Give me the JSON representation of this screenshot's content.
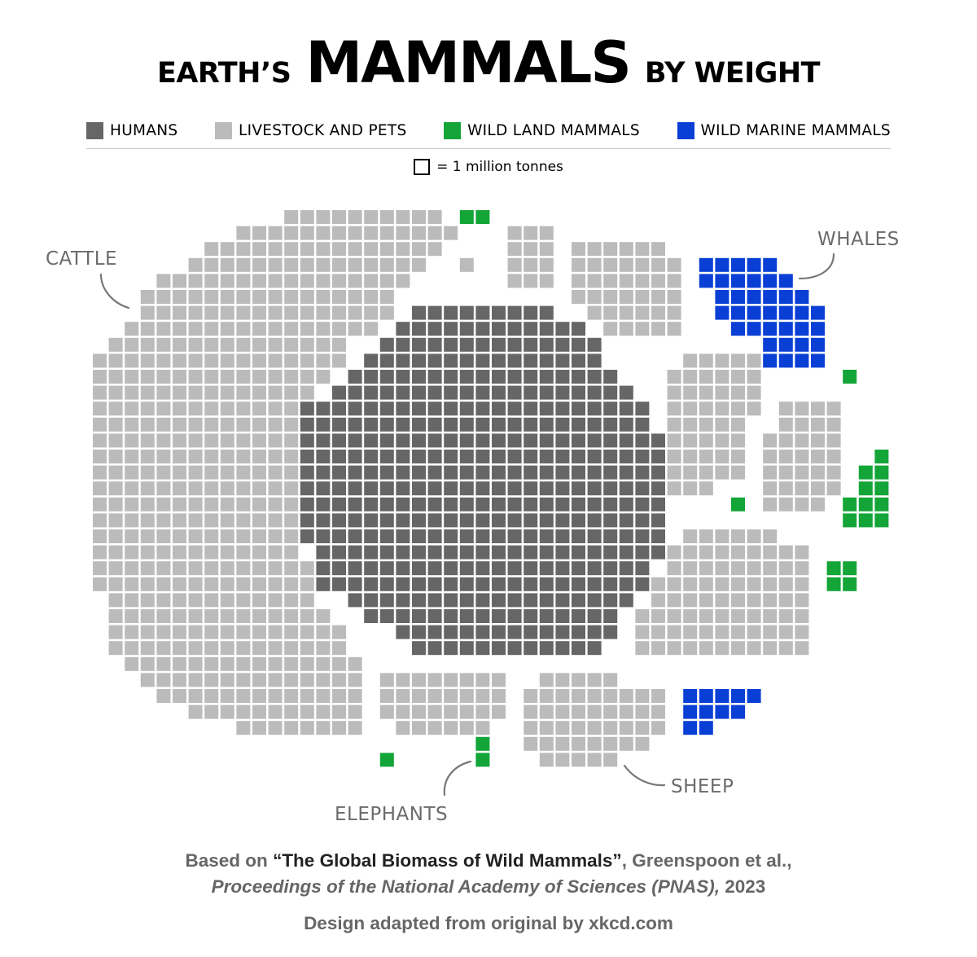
{
  "title": {
    "prefix": "EARTH’S",
    "main": "MAMMALS",
    "suffix": "BY WEIGHT"
  },
  "colors": {
    "humans": "#666666",
    "livestock": "#bbbbbb",
    "wild_land": "#13a538",
    "wild_marine": "#0a3fd6"
  },
  "legend": [
    {
      "key": "humans",
      "label": "HUMANS"
    },
    {
      "key": "livestock",
      "label": "LIVESTOCK AND PETS"
    },
    {
      "key": "wild_land",
      "label": "WILD LAND MAMMALS"
    },
    {
      "key": "wild_marine",
      "label": "WILD MARINE MAMMALS"
    }
  ],
  "scale_key": "= 1 million tonnes",
  "annotations": {
    "cattle": "CATTLE",
    "whales": "WHALES",
    "sheep": "SHEEP",
    "elephants": "ELEPHANTS"
  },
  "footer": {
    "based_on": "Based on",
    "paper": "“The Global Biomass of Wild Mammals”",
    "authors": ", Greenspoon et al.,",
    "journal": "Proceedings of the National Academy of Sciences (PNAS),",
    "year": "2023",
    "credit": "Design adapted from original by xkcd.com"
  },
  "chart_data": {
    "type": "waffle",
    "unit": "1 million tonnes per square",
    "groups": [
      {
        "category": "humans",
        "label": "HUMANS",
        "squares": 390
      },
      {
        "category": "livestock",
        "label": "CATTLE",
        "squares": 550
      },
      {
        "category": "livestock",
        "label": "SHEEP",
        "squares": 62
      },
      {
        "category": "livestock",
        "label": "LIVESTOCK AND PETS (other)",
        "squares": 342
      },
      {
        "category": "wild_land",
        "label": "ELEPHANTS",
        "squares": 2
      },
      {
        "category": "wild_land",
        "label": "WILD LAND MAMMALS (other)",
        "squares": 20
      },
      {
        "category": "wild_marine",
        "label": "WHALES",
        "squares": 40
      },
      {
        "category": "wild_marine",
        "label": "WILD MARINE MAMMALS (other)",
        "squares": 8
      }
    ]
  }
}
